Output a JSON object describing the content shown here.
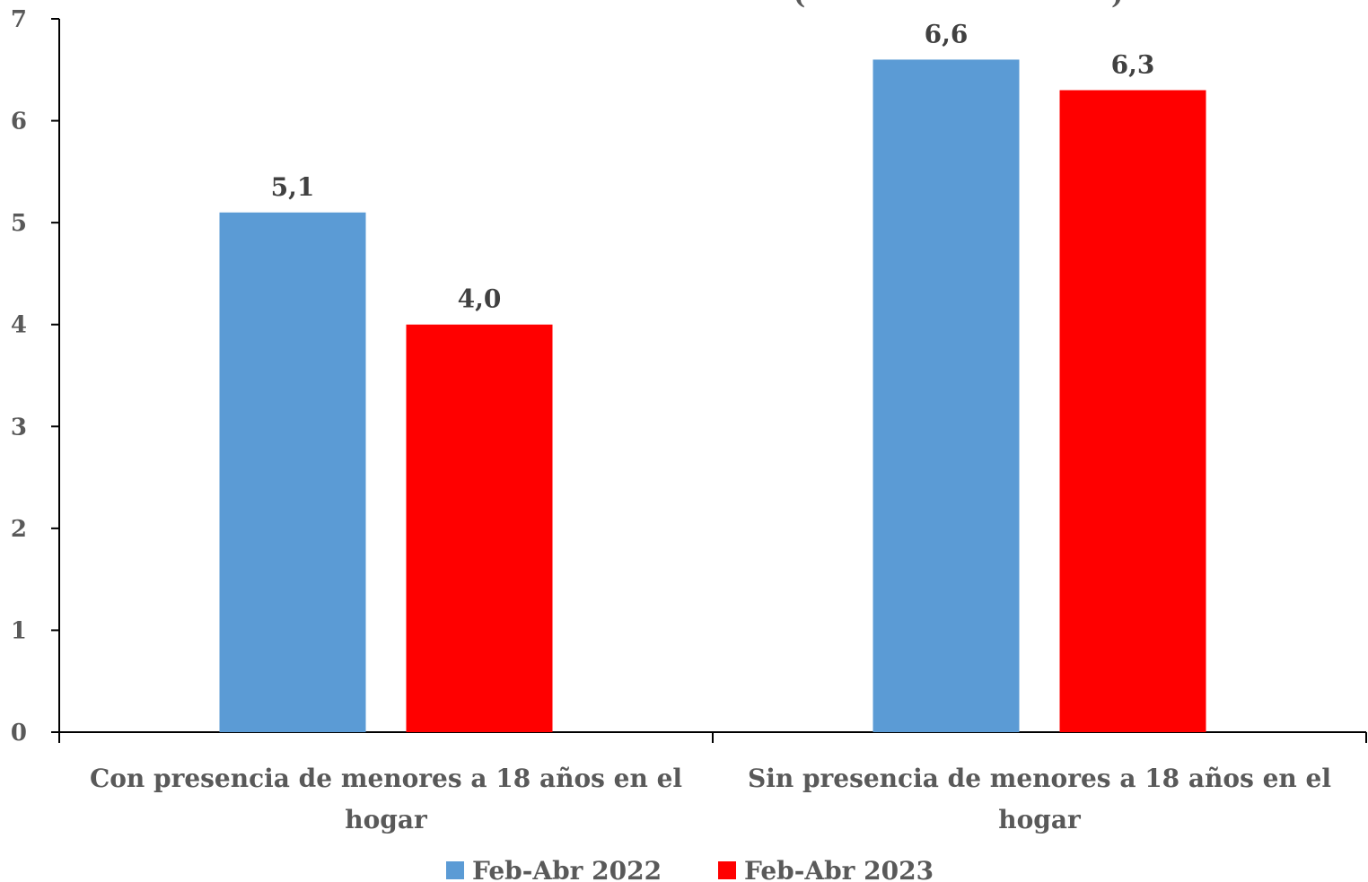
{
  "chart_data": {
    "type": "bar",
    "title": "(",
    "title_tail": ")",
    "categories": [
      [
        "Con presencia de menores a 18 años en el",
        "hogar"
      ],
      [
        "Sin presencia de menores a 18 años en el",
        "hogar"
      ]
    ],
    "series": [
      {
        "name": "Feb-Abr 2022",
        "color": "#5B9BD5",
        "values": [
          5.1,
          6.6
        ],
        "labels": [
          "5,1",
          "6,6"
        ]
      },
      {
        "name": "Feb-Abr 2023",
        "color": "#FF0000",
        "values": [
          4.0,
          6.3
        ],
        "labels": [
          "4,0",
          "6,3"
        ]
      }
    ],
    "ylim": [
      0,
      7
    ],
    "yticks": [
      "0",
      "1",
      "2",
      "3",
      "4",
      "5",
      "6",
      "7"
    ],
    "xlabel": "",
    "ylabel": "",
    "grid": false,
    "legend": "bottom"
  }
}
